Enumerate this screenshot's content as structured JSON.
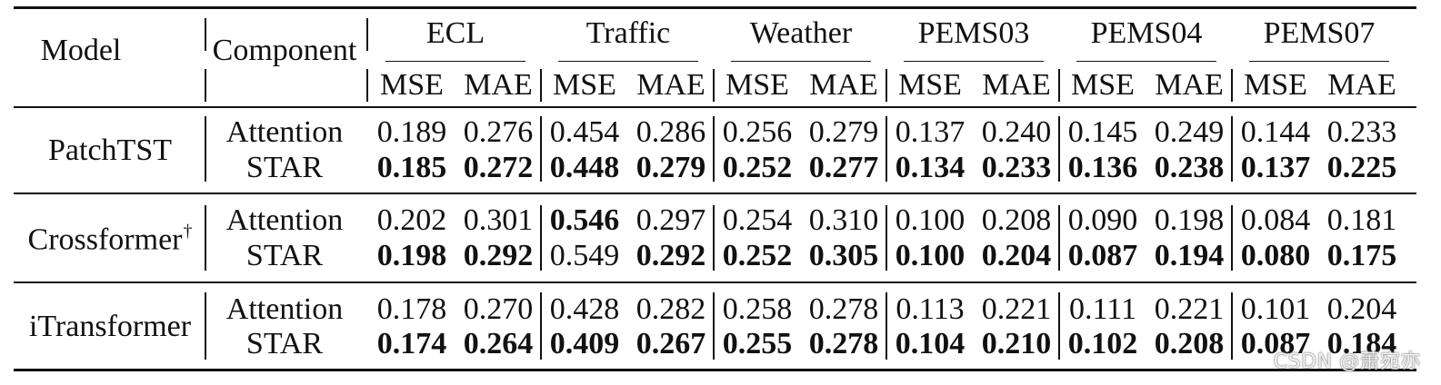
{
  "table": {
    "header": {
      "model": "Model",
      "component": "Component",
      "datasets": [
        "ECL",
        "Traffic",
        "Weather",
        "PEMS03",
        "PEMS04",
        "PEMS07"
      ],
      "metrics": [
        "MSE",
        "MAE"
      ]
    },
    "groups": [
      {
        "model": "PatchTST",
        "dagger": "",
        "rows": [
          {
            "component": "Attention",
            "values": [
              "0.189",
              "0.276",
              "0.454",
              "0.286",
              "0.256",
              "0.279",
              "0.137",
              "0.240",
              "0.145",
              "0.249",
              "0.144",
              "0.233"
            ],
            "bold": [
              false,
              false,
              false,
              false,
              false,
              false,
              false,
              false,
              false,
              false,
              false,
              false
            ]
          },
          {
            "component": "STAR",
            "values": [
              "0.185",
              "0.272",
              "0.448",
              "0.279",
              "0.252",
              "0.277",
              "0.134",
              "0.233",
              "0.136",
              "0.238",
              "0.137",
              "0.225"
            ],
            "bold": [
              true,
              true,
              true,
              true,
              true,
              true,
              true,
              true,
              true,
              true,
              true,
              true
            ]
          }
        ]
      },
      {
        "model": "Crossformer",
        "dagger": "†",
        "rows": [
          {
            "component": "Attention",
            "values": [
              "0.202",
              "0.301",
              "0.546",
              "0.297",
              "0.254",
              "0.310",
              "0.100",
              "0.208",
              "0.090",
              "0.198",
              "0.084",
              "0.181"
            ],
            "bold": [
              false,
              false,
              true,
              false,
              false,
              false,
              false,
              false,
              false,
              false,
              false,
              false
            ]
          },
          {
            "component": "STAR",
            "values": [
              "0.198",
              "0.292",
              "0.549",
              "0.292",
              "0.252",
              "0.305",
              "0.100",
              "0.204",
              "0.087",
              "0.194",
              "0.080",
              "0.175"
            ],
            "bold": [
              true,
              true,
              false,
              true,
              true,
              true,
              true,
              true,
              true,
              true,
              true,
              true
            ]
          }
        ]
      },
      {
        "model": "iTransformer",
        "dagger": "",
        "rows": [
          {
            "component": "Attention",
            "values": [
              "0.178",
              "0.270",
              "0.428",
              "0.282",
              "0.258",
              "0.278",
              "0.113",
              "0.221",
              "0.111",
              "0.221",
              "0.101",
              "0.204"
            ],
            "bold": [
              false,
              false,
              false,
              false,
              false,
              false,
              false,
              false,
              false,
              false,
              false,
              false
            ]
          },
          {
            "component": "STAR",
            "values": [
              "0.174",
              "0.264",
              "0.409",
              "0.267",
              "0.255",
              "0.278",
              "0.104",
              "0.210",
              "0.102",
              "0.208",
              "0.087",
              "0.184"
            ],
            "bold": [
              true,
              true,
              true,
              true,
              true,
              true,
              true,
              true,
              true,
              true,
              true,
              true
            ]
          }
        ]
      }
    ]
  },
  "watermark": "CSDN @萧宛亦"
}
